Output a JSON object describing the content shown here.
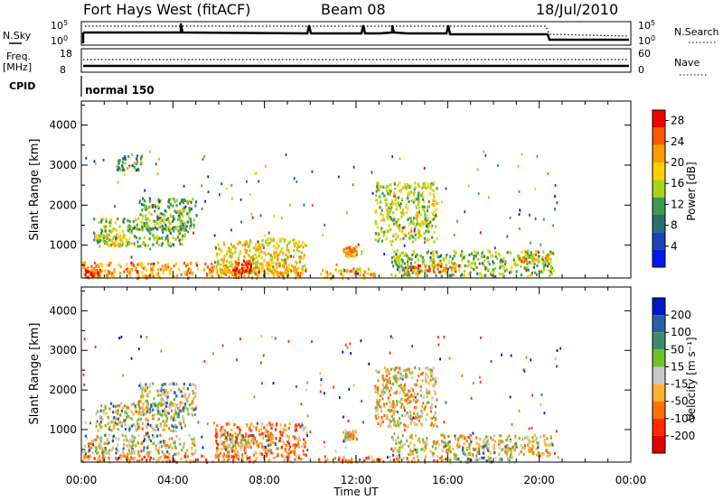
{
  "header": {
    "station": "Fort Hays West (fitACF)",
    "beam": "Beam 08",
    "date": "18/Jul/2010"
  },
  "panels": {
    "nsky_label": "N.Sky",
    "nsky_ticks": [
      "10^5",
      "10^0"
    ],
    "nsearch_label": "N.Search",
    "nsearch_ticks": [
      "10^5",
      "10^0"
    ],
    "freq_label": "Freq.",
    "freq_unit": "[MHz]",
    "freq_ticks": [
      "18",
      "8"
    ],
    "nave_label": "Nave",
    "nave_ticks": [
      "60",
      "0"
    ],
    "cpid_label": "CPID",
    "cpid_value": "normal 150"
  },
  "colors": {
    "power": [
      "#0018f0",
      "#1a44b4",
      "#2c6e6e",
      "#3c9a52",
      "#a8d41a",
      "#ffd000",
      "#ff9c00",
      "#ff5800",
      "#f00000"
    ],
    "velocity": [
      "#0018c8",
      "#2860a8",
      "#3c8c6c",
      "#70c030",
      "#c8c8c8",
      "#ffb030",
      "#ff7000",
      "#ff2800",
      "#e00000"
    ]
  },
  "chart_data": [
    {
      "type": "heatmap",
      "ylabel": "Slant Range [km]",
      "xlabel": "",
      "x_ticks": [
        "00:00",
        "04:00",
        "08:00",
        "12:00",
        "16:00",
        "20:00",
        "00:00"
      ],
      "y_ticks": [
        1000,
        2000,
        3000,
        4000
      ],
      "xlim": [
        0,
        24
      ],
      "ylim": [
        180,
        4600
      ],
      "colorbar_label": "Power [dB]",
      "colorbar_ticks": [
        4,
        8,
        12,
        16,
        20,
        24,
        28
      ],
      "clim": [
        0,
        30
      ],
      "features": [
        {
          "t0": 0.0,
          "t1": 9.6,
          "r0": 200,
          "r1": 600,
          "level": 22
        },
        {
          "t0": 0.1,
          "t1": 0.8,
          "r0": 220,
          "r1": 450,
          "level": 26
        },
        {
          "t0": 0.5,
          "t1": 4.5,
          "r0": 1000,
          "r1": 1700,
          "level": 14
        },
        {
          "t0": 0.7,
          "t1": 2.0,
          "r0": 1000,
          "r1": 1300,
          "level": 18
        },
        {
          "t0": 2.5,
          "t1": 5.0,
          "r0": 1400,
          "r1": 2200,
          "level": 12
        },
        {
          "t0": 1.5,
          "t1": 2.6,
          "r0": 2900,
          "r1": 3300,
          "level": 10
        },
        {
          "t0": 5.8,
          "t1": 9.8,
          "r0": 300,
          "r1": 1200,
          "level": 18
        },
        {
          "t0": 6.6,
          "t1": 7.4,
          "r0": 300,
          "r1": 650,
          "level": 26
        },
        {
          "t0": 10.3,
          "t1": 12.8,
          "r0": 200,
          "r1": 450,
          "level": 20
        },
        {
          "t0": 11.4,
          "t1": 12.0,
          "r0": 750,
          "r1": 1000,
          "level": 22
        },
        {
          "t0": 12.8,
          "t1": 15.5,
          "r0": 1100,
          "r1": 2600,
          "level": 16
        },
        {
          "t0": 13.5,
          "t1": 20.6,
          "r0": 250,
          "r1": 900,
          "level": 14
        },
        {
          "t0": 14.0,
          "t1": 16.5,
          "r0": 350,
          "r1": 550,
          "level": 24
        },
        {
          "t0": 19.0,
          "t1": 20.5,
          "r0": 600,
          "r1": 800,
          "level": 20
        }
      ]
    },
    {
      "type": "heatmap",
      "ylabel": "Slant Range [km]",
      "xlabel": "Time UT",
      "x_ticks": [
        "00:00",
        "04:00",
        "08:00",
        "12:00",
        "16:00",
        "20:00",
        "00:00"
      ],
      "y_ticks": [
        1000,
        2000,
        3000,
        4000
      ],
      "xlim": [
        0,
        24
      ],
      "ylim": [
        180,
        4600
      ],
      "colorbar_label": "Velocity [m s⁻¹]",
      "colorbar_ticks": [
        200,
        100,
        50,
        15,
        -15,
        -50,
        -100,
        -200
      ],
      "features": [
        {
          "t0": 0.0,
          "t1": 9.6,
          "r0": 200,
          "r1": 380,
          "level": -60
        },
        {
          "t0": 0.0,
          "t1": 5.0,
          "r0": 400,
          "r1": 900,
          "level": 0
        },
        {
          "t0": 0.6,
          "t1": 4.5,
          "r0": 1000,
          "r1": 1700,
          "level": 0
        },
        {
          "t0": 2.5,
          "t1": 5.0,
          "r0": 1400,
          "r1": 2200,
          "level": 20
        },
        {
          "t0": 5.8,
          "t1": 9.8,
          "r0": 300,
          "r1": 1200,
          "level": -70
        },
        {
          "t0": 6.0,
          "t1": 8.5,
          "r0": 500,
          "r1": 900,
          "level": 0
        },
        {
          "t0": 10.3,
          "t1": 16.0,
          "r0": 200,
          "r1": 350,
          "level": -60
        },
        {
          "t0": 11.4,
          "t1": 12.0,
          "r0": 750,
          "r1": 1000,
          "level": 0
        },
        {
          "t0": 12.8,
          "t1": 15.5,
          "r0": 1100,
          "r1": 2600,
          "level": -30
        },
        {
          "t0": 13.5,
          "t1": 20.6,
          "r0": 350,
          "r1": 900,
          "level": 0
        },
        {
          "t0": 16.0,
          "t1": 19.0,
          "r0": 200,
          "r1": 350,
          "level": 30
        }
      ]
    }
  ]
}
